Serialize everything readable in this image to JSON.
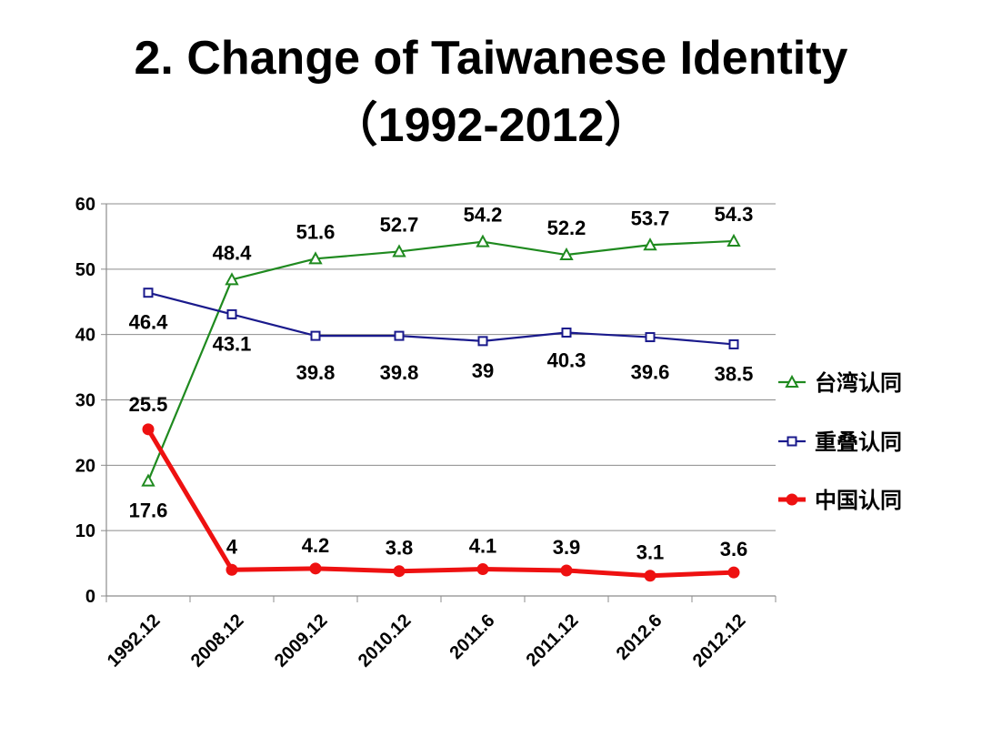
{
  "slide": {
    "title_line1": "2. Change of Taiwanese Identity",
    "title_line2": "（1992-2012）"
  },
  "chart_data": {
    "type": "line",
    "categories": [
      "1992.12",
      "2008.12",
      "2009.12",
      "2010.12",
      "2011.6",
      "2011.12",
      "2012.6",
      "2012.12"
    ],
    "ylim": [
      0,
      60
    ],
    "yticks": [
      0,
      10,
      20,
      30,
      40,
      50,
      60
    ],
    "grid": true,
    "legend_position": "right",
    "series": [
      {
        "name": "台湾认同",
        "values": [
          17.6,
          48.4,
          51.6,
          52.7,
          54.2,
          52.2,
          53.7,
          54.3
        ],
        "labels": [
          "17.6",
          "48.4",
          "51.6",
          "52.7",
          "54.2",
          "52.2",
          "53.7",
          "54.3"
        ],
        "color": "#1f8a1f",
        "marker": "triangle"
      },
      {
        "name": "重叠认同",
        "values": [
          46.4,
          43.1,
          39.8,
          39.8,
          39,
          40.3,
          39.6,
          38.5
        ],
        "labels": [
          "46.4",
          "43.1",
          "39.8",
          "39.8",
          "39",
          "40.3",
          "39.6",
          "38.5"
        ],
        "color": "#1a1a8c",
        "marker": "square"
      },
      {
        "name": "中国认同",
        "values": [
          25.5,
          4,
          4.2,
          3.8,
          4.1,
          3.9,
          3.1,
          3.6
        ],
        "labels": [
          "25.5",
          "4",
          "4.2",
          "3.8",
          "4.1",
          "3.9",
          "3.1",
          "3.6"
        ],
        "color": "#ee1111",
        "marker": "circle"
      }
    ]
  }
}
